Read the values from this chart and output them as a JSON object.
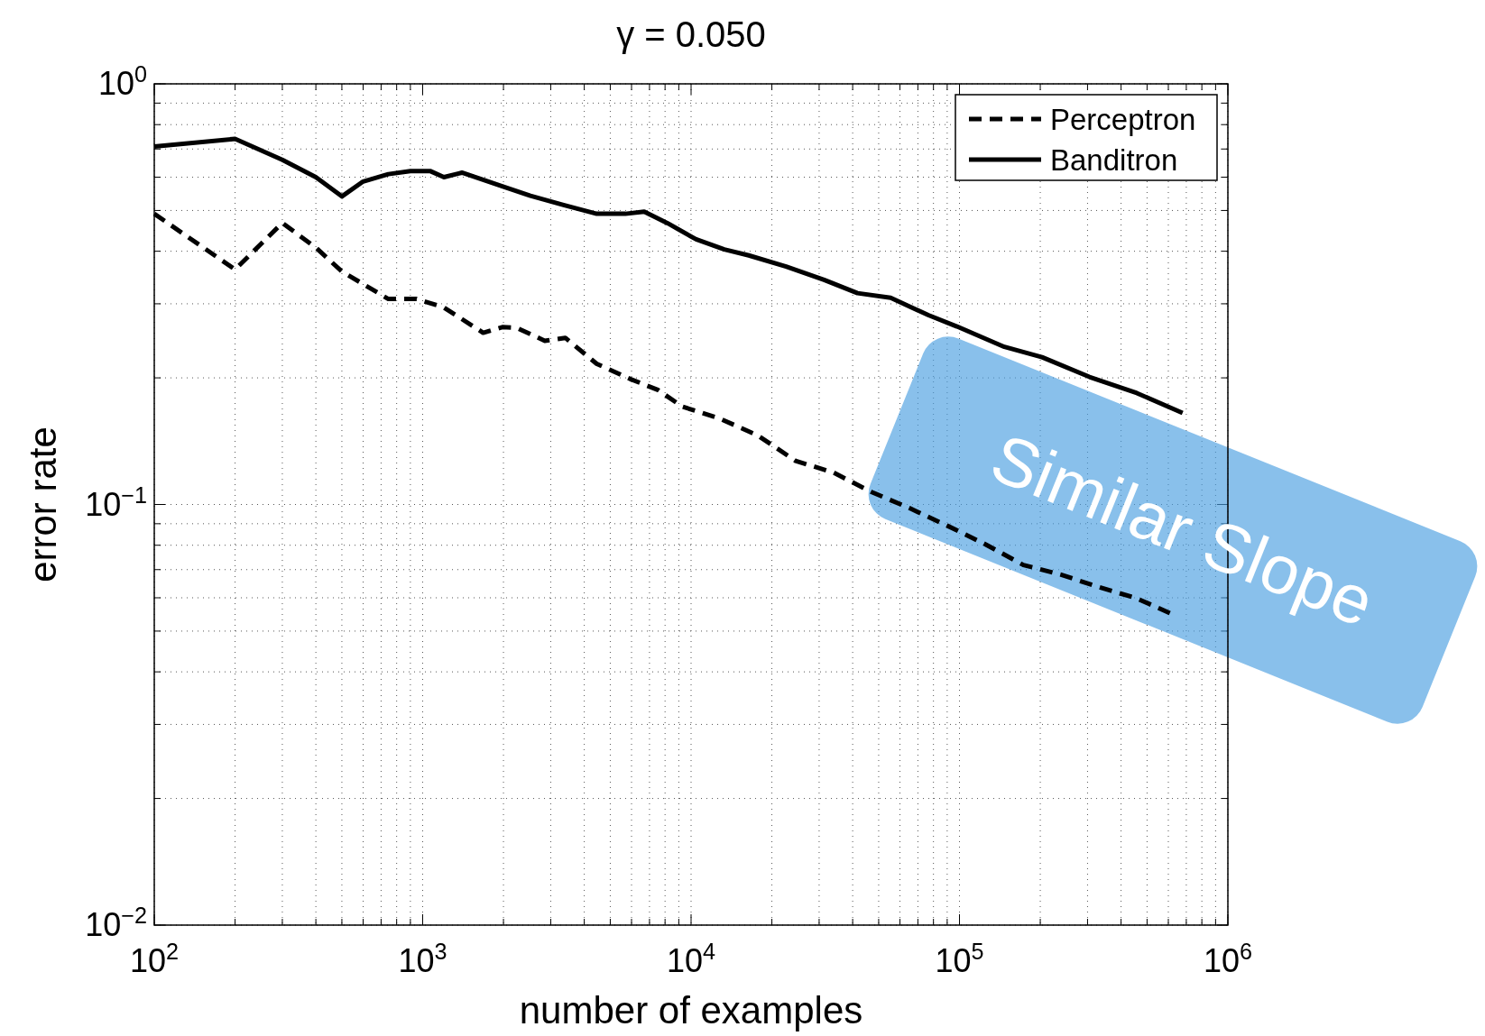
{
  "chart_data": {
    "type": "line",
    "title": "γ = 0.050",
    "xlabel": "number of examples",
    "ylabel": "error rate",
    "log": "xy",
    "grid": true,
    "legend": "top right",
    "xlim": [
      100,
      1000000
    ],
    "ylim": [
      0.01,
      1
    ],
    "xticks": [
      {
        "value": 100,
        "label": "10$^{2}$"
      },
      {
        "value": 1000,
        "label": "10$^{3}$"
      },
      {
        "value": 10000,
        "label": "10$^{4}$"
      },
      {
        "value": 100000,
        "label": "10$^{5}$"
      },
      {
        "value": 1000000,
        "label": "10$^{6}$"
      }
    ],
    "yticks": [
      {
        "value": 0.01,
        "label": "10$^{−2}$"
      },
      {
        "value": 0.1,
        "label": "10$^{−1}$"
      },
      {
        "value": 1,
        "label": "10$^{0}$"
      }
    ],
    "annotations": [
      "Similar Slope"
    ],
    "series": [
      {
        "name": "Perceptron",
        "color": "#000000",
        "line_style": "dashed",
        "x": [
          100,
          200,
          300,
          400,
          500,
          745,
          950,
          1200,
          1680,
          1980,
          2240,
          2850,
          3400,
          4450,
          5910,
          7550,
          9250,
          12800,
          17700,
          24500,
          34000,
          47100,
          65200,
          90200,
          125000,
          173000,
          239000,
          331000,
          458000,
          634000
        ],
        "values": [
          0.491,
          0.362,
          0.467,
          0.408,
          0.358,
          0.308,
          0.308,
          0.294,
          0.256,
          0.264,
          0.263,
          0.245,
          0.249,
          0.216,
          0.199,
          0.187,
          0.171,
          0.16,
          0.146,
          0.127,
          0.119,
          0.107,
          0.098,
          0.089,
          0.0804,
          0.0718,
          0.0681,
          0.0636,
          0.0598,
          0.0545
        ]
      },
      {
        "name": "Banditron",
        "color": "#000000",
        "line_style": "solid",
        "x": [
          100,
          200,
          300,
          400,
          500,
          600,
          745,
          900,
          1070,
          1200,
          1400,
          1980,
          2520,
          3350,
          4450,
          5690,
          6690,
          8190,
          10440,
          13300,
          16400,
          22600,
          31300,
          41700,
          55400,
          76600,
          97800,
          147000,
          203000,
          305000,
          458000,
          678000
        ],
        "values": [
          0.71,
          0.74,
          0.66,
          0.6,
          0.54,
          0.586,
          0.61,
          0.62,
          0.62,
          0.6,
          0.615,
          0.571,
          0.542,
          0.515,
          0.491,
          0.491,
          0.497,
          0.466,
          0.427,
          0.404,
          0.391,
          0.368,
          0.342,
          0.318,
          0.31,
          0.282,
          0.265,
          0.237,
          0.224,
          0.201,
          0.184,
          0.165
        ]
      }
    ]
  }
}
